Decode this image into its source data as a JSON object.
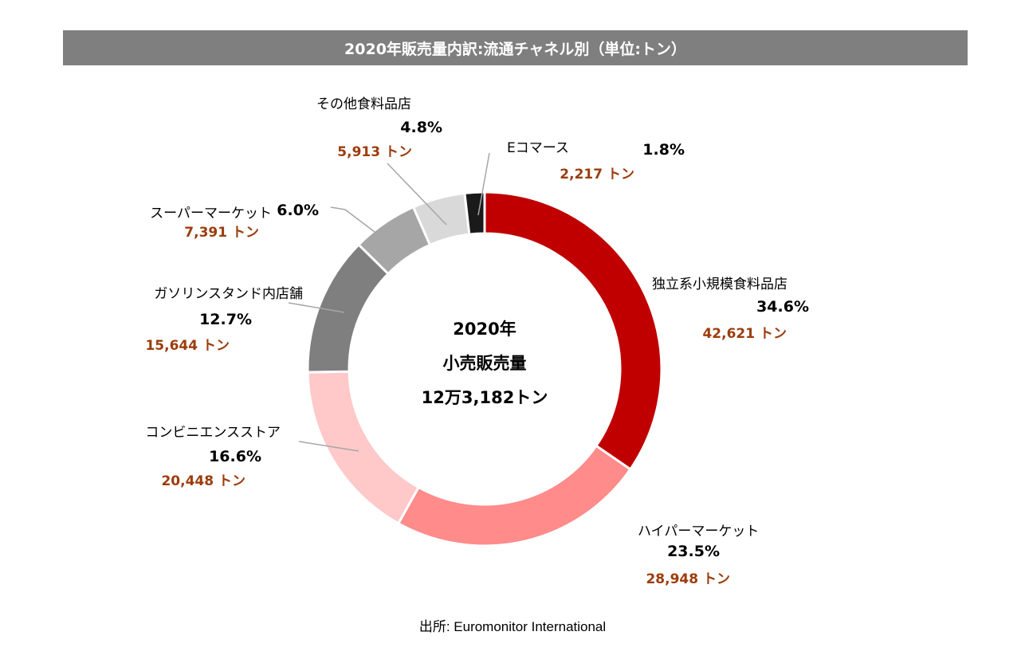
{
  "header": {
    "title": "2020年販売量内訳:流通チャネル別（単位:トン）"
  },
  "center": {
    "line1": "2020年",
    "line2": "小売販売量",
    "line3": "12万3,182トン"
  },
  "source": "出所: Euromonitor International",
  "chart_data": {
    "type": "donut",
    "title": "2020年販売量内訳:流通チャネル別（単位:トン）",
    "unit": "トン",
    "total": 123182,
    "slices": [
      {
        "name": "独立系小規模食料品店",
        "percent": 34.6,
        "value": 42621,
        "percent_label": "34.6%",
        "value_label": "42,621 トン",
        "color": "#c00000"
      },
      {
        "name": "ハイパーマーケット",
        "percent": 23.5,
        "value": 28948,
        "percent_label": "23.5%",
        "value_label": "28,948 トン",
        "color": "#ff8b8b"
      },
      {
        "name": "コンビニエンスストア",
        "percent": 16.6,
        "value": 20448,
        "percent_label": "16.6%",
        "value_label": "20,448 トン",
        "color": "#ffc9c9"
      },
      {
        "name": "ガソリンスタンド内店舗",
        "percent": 12.7,
        "value": 15644,
        "percent_label": "12.7%",
        "value_label": "15,644 トン",
        "color": "#7f7f7f"
      },
      {
        "name": "スーパーマーケット",
        "percent": 6.0,
        "value": 7391,
        "percent_label": "6.0%",
        "value_label": "7,391 トン",
        "color": "#a6a6a6"
      },
      {
        "name": "その他食料品店",
        "percent": 4.8,
        "value": 5913,
        "percent_label": "4.8%",
        "value_label": "5,913 トン",
        "color": "#d9d9d9"
      },
      {
        "name": "Eコマース",
        "percent": 1.8,
        "value": 2217,
        "percent_label": "1.8%",
        "value_label": "2,217 トン",
        "color": "#1a1a1a"
      }
    ],
    "value_label_color": "#9c3c0c",
    "leader_line_color": "#a6a6a6"
  }
}
